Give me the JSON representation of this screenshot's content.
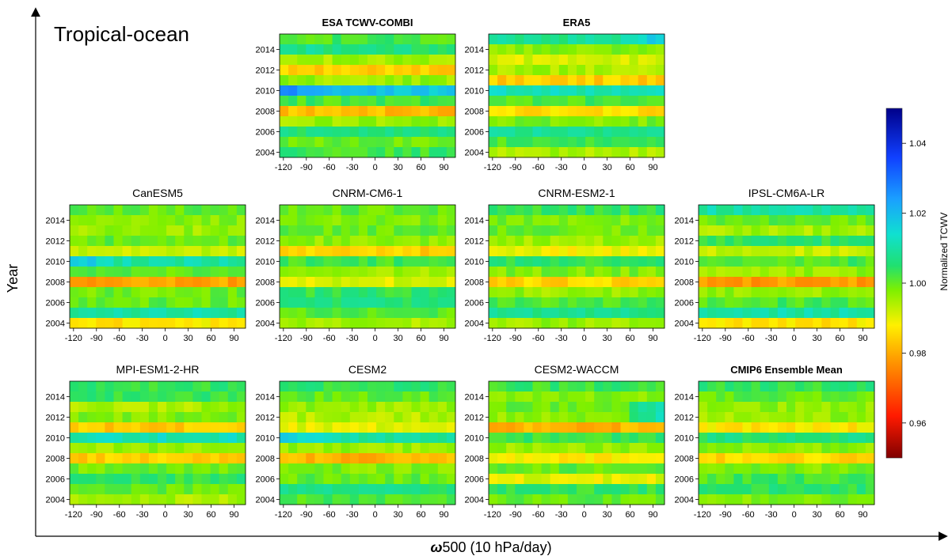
{
  "region_label": "Tropical-ocean",
  "y_axis_label": "Year",
  "x_axis_label": "500 (10 hPa/day)",
  "x_axis_symbol": "ω",
  "colorbar": {
    "label": "Normalized TCWV",
    "min": 0.95,
    "max": 1.05,
    "ticks": [
      "1.04",
      "1.02",
      "1.00",
      "0.98",
      "0.96"
    ]
  },
  "chart_data": [
    {
      "type": "heatmap",
      "title": "ESA TCWV-COMBI",
      "bold": true,
      "x_ticks": [
        "-120",
        "-90",
        "-60",
        "-30",
        "0",
        "30",
        "60",
        "90"
      ],
      "y_ticks": [
        "2014",
        "2012",
        "2010",
        "2008",
        "2006",
        "2004"
      ],
      "rows": [
        {
          "year": 2015,
          "base": 1.002,
          "hi_left": 0.0,
          "hi_right": 0.0
        },
        {
          "year": 2014,
          "base": 1.006,
          "note": "",
          "hi_left": 0.004,
          "hi_right": 0.0
        },
        {
          "year": 2013,
          "base": 0.995
        },
        {
          "year": 2012,
          "base": 0.984
        },
        {
          "year": 2011,
          "base": 0.996
        },
        {
          "year": 2010,
          "base": 1.018,
          "hi_left": 0.01
        },
        {
          "year": 2009,
          "base": 1.002
        },
        {
          "year": 2008,
          "base": 0.982
        },
        {
          "year": 2007,
          "base": 0.996
        },
        {
          "year": 2006,
          "base": 1.006
        },
        {
          "year": 2005,
          "base": 0.999
        },
        {
          "year": 2004,
          "base": 1.003
        }
      ]
    },
    {
      "type": "heatmap",
      "title": "ERA5",
      "bold": true,
      "x_ticks": [
        "-120",
        "-90",
        "-60",
        "-30",
        "0",
        "30",
        "60",
        "90"
      ],
      "y_ticks": [
        "2014",
        "2012",
        "2010",
        "2008",
        "2006",
        "2004"
      ],
      "rows": [
        {
          "year": 2015,
          "base": 1.008,
          "hi_right": 0.01
        },
        {
          "year": 2014,
          "base": 0.998
        },
        {
          "year": 2013,
          "base": 0.991
        },
        {
          "year": 2012,
          "base": 0.995
        },
        {
          "year": 2011,
          "base": 0.984
        },
        {
          "year": 2010,
          "base": 1.012
        },
        {
          "year": 2009,
          "base": 1.002
        },
        {
          "year": 2008,
          "base": 0.986
        },
        {
          "year": 2007,
          "base": 0.998
        },
        {
          "year": 2006,
          "base": 1.008
        },
        {
          "year": 2005,
          "base": 1.002
        },
        {
          "year": 2004,
          "base": 0.995
        }
      ]
    },
    {
      "type": "heatmap",
      "title": "CanESM5",
      "bold": false,
      "x_ticks": [
        "-120",
        "-90",
        "-60",
        "-30",
        "0",
        "30",
        "60",
        "90"
      ],
      "y_ticks": [
        "2014",
        "2012",
        "2010",
        "2008",
        "2006",
        "2004"
      ],
      "rows": [
        {
          "year": 2015,
          "base": 1.0
        },
        {
          "year": 2014,
          "base": 0.998
        },
        {
          "year": 2013,
          "base": 0.996
        },
        {
          "year": 2012,
          "base": 1.0
        },
        {
          "year": 2011,
          "base": 0.992
        },
        {
          "year": 2010,
          "base": 1.01,
          "hi_left": 0.01
        },
        {
          "year": 2009,
          "base": 1.0
        },
        {
          "year": 2008,
          "base": 0.979
        },
        {
          "year": 2007,
          "base": 0.999
        },
        {
          "year": 2006,
          "base": 1.0
        },
        {
          "year": 2005,
          "base": 1.01
        },
        {
          "year": 2004,
          "base": 0.987
        }
      ]
    },
    {
      "type": "heatmap",
      "title": "CNRM-CM6-1",
      "bold": false,
      "x_ticks": [
        "-120",
        "-90",
        "-60",
        "-30",
        "0",
        "30",
        "60",
        "90"
      ],
      "y_ticks": [
        "2014",
        "2012",
        "2010",
        "2008",
        "2006",
        "2004"
      ],
      "rows": [
        {
          "year": 2015,
          "base": 1.0
        },
        {
          "year": 2014,
          "base": 0.998
        },
        {
          "year": 2013,
          "base": 1.0
        },
        {
          "year": 2012,
          "base": 0.997
        },
        {
          "year": 2011,
          "base": 0.984
        },
        {
          "year": 2010,
          "base": 1.002
        },
        {
          "year": 2009,
          "base": 0.995
        },
        {
          "year": 2008,
          "base": 0.991
        },
        {
          "year": 2007,
          "base": 1.004
        },
        {
          "year": 2006,
          "base": 1.006
        },
        {
          "year": 2005,
          "base": 1.001
        },
        {
          "year": 2004,
          "base": 0.995
        }
      ]
    },
    {
      "type": "heatmap",
      "title": "CNRM-ESM2-1",
      "bold": false,
      "x_ticks": [
        "-120",
        "-90",
        "-60",
        "-30",
        "0",
        "30",
        "60",
        "90"
      ],
      "y_ticks": [
        "2014",
        "2012",
        "2010",
        "2008",
        "2006",
        "2004"
      ],
      "rows": [
        {
          "year": 2015,
          "base": 1.004
        },
        {
          "year": 2014,
          "base": 0.998
        },
        {
          "year": 2013,
          "base": 0.999
        },
        {
          "year": 2012,
          "base": 0.996
        },
        {
          "year": 2011,
          "base": 0.989
        },
        {
          "year": 2010,
          "base": 1.004
        },
        {
          "year": 2009,
          "base": 0.998
        },
        {
          "year": 2008,
          "base": 0.985
        },
        {
          "year": 2007,
          "base": 0.996
        },
        {
          "year": 2006,
          "base": 1.002
        },
        {
          "year": 2005,
          "base": 1.008
        },
        {
          "year": 2004,
          "base": 0.996
        }
      ]
    },
    {
      "type": "heatmap",
      "title": "IPSL-CM6A-LR",
      "bold": false,
      "x_ticks": [
        "-120",
        "-90",
        "-60",
        "-30",
        "0",
        "30",
        "60",
        "90"
      ],
      "y_ticks": [
        "2014",
        "2012",
        "2010",
        "2008",
        "2006",
        "2004"
      ],
      "rows": [
        {
          "year": 2015,
          "base": 1.01
        },
        {
          "year": 2014,
          "base": 1.0
        },
        {
          "year": 2013,
          "base": 0.995
        },
        {
          "year": 2012,
          "base": 1.004
        },
        {
          "year": 2011,
          "base": 0.992
        },
        {
          "year": 2010,
          "base": 1.002
        },
        {
          "year": 2009,
          "base": 0.996
        },
        {
          "year": 2008,
          "base": 0.978
        },
        {
          "year": 2007,
          "base": 0.996
        },
        {
          "year": 2006,
          "base": 1.002
        },
        {
          "year": 2005,
          "base": 1.01
        },
        {
          "year": 2004,
          "base": 0.987
        }
      ]
    },
    {
      "type": "heatmap",
      "title": "MPI-ESM1-2-HR",
      "bold": false,
      "x_ticks": [
        "-120",
        "-90",
        "-60",
        "-30",
        "0",
        "30",
        "60",
        "90"
      ],
      "y_ticks": [
        "2014",
        "2012",
        "2010",
        "2008",
        "2006",
        "2004"
      ],
      "rows": [
        {
          "year": 2015,
          "base": 1.004
        },
        {
          "year": 2014,
          "base": 1.003
        },
        {
          "year": 2013,
          "base": 0.995
        },
        {
          "year": 2012,
          "base": 0.998
        },
        {
          "year": 2011,
          "base": 0.984
        },
        {
          "year": 2010,
          "base": 1.012
        },
        {
          "year": 2009,
          "base": 0.996
        },
        {
          "year": 2008,
          "base": 0.984
        },
        {
          "year": 2007,
          "base": 0.999
        },
        {
          "year": 2006,
          "base": 1.004
        },
        {
          "year": 2005,
          "base": 1.0
        },
        {
          "year": 2004,
          "base": 0.995
        }
      ]
    },
    {
      "type": "heatmap",
      "title": "CESM2",
      "bold": false,
      "x_ticks": [
        "-120",
        "-90",
        "-60",
        "-30",
        "0",
        "30",
        "60",
        "90"
      ],
      "y_ticks": [
        "2014",
        "2012",
        "2010",
        "2008",
        "2006",
        "2004"
      ],
      "rows": [
        {
          "year": 2015,
          "base": 1.004
        },
        {
          "year": 2014,
          "base": 1.0
        },
        {
          "year": 2013,
          "base": 0.996
        },
        {
          "year": 2012,
          "base": 0.994
        },
        {
          "year": 2011,
          "base": 0.99
        },
        {
          "year": 2010,
          "base": 1.01,
          "hi_left": 0.01
        },
        {
          "year": 2009,
          "base": 0.996
        },
        {
          "year": 2008,
          "base": 0.981
        },
        {
          "year": 2007,
          "base": 0.998
        },
        {
          "year": 2006,
          "base": 1.0
        },
        {
          "year": 2005,
          "base": 1.006
        },
        {
          "year": 2004,
          "base": 1.002
        }
      ]
    },
    {
      "type": "heatmap",
      "title": "CESM2-WACCM",
      "bold": false,
      "x_ticks": [
        "-120",
        "-90",
        "-60",
        "-30",
        "0",
        "30",
        "60",
        "90"
      ],
      "y_ticks": [
        "2014",
        "2012",
        "2010",
        "2008",
        "2006",
        "2004"
      ],
      "rows": [
        {
          "year": 2015,
          "base": 1.003
        },
        {
          "year": 2014,
          "base": 0.998
        },
        {
          "year": 2013,
          "base": 1.0,
          "hi_right": 0.012
        },
        {
          "year": 2012,
          "base": 0.997,
          "hi_right": 0.016
        },
        {
          "year": 2011,
          "base": 0.981
        },
        {
          "year": 2010,
          "base": 1.003
        },
        {
          "year": 2009,
          "base": 0.996
        },
        {
          "year": 2008,
          "base": 0.988
        },
        {
          "year": 2007,
          "base": 1.0
        },
        {
          "year": 2006,
          "base": 0.99
        },
        {
          "year": 2005,
          "base": 1.004
        },
        {
          "year": 2004,
          "base": 1.0
        }
      ]
    },
    {
      "type": "heatmap",
      "title": "CMIP6 Ensemble Mean",
      "bold": true,
      "x_ticks": [
        "-120",
        "-90",
        "-60",
        "-30",
        "0",
        "30",
        "60",
        "90"
      ],
      "y_ticks": [
        "2014",
        "2012",
        "2010",
        "2008",
        "2006",
        "2004"
      ],
      "rows": [
        {
          "year": 2015,
          "base": 1.004
        },
        {
          "year": 2014,
          "base": 1.0
        },
        {
          "year": 2013,
          "base": 0.997
        },
        {
          "year": 2012,
          "base": 0.996
        },
        {
          "year": 2011,
          "base": 0.987
        },
        {
          "year": 2010,
          "base": 1.006
        },
        {
          "year": 2009,
          "base": 0.997
        },
        {
          "year": 2008,
          "base": 0.985
        },
        {
          "year": 2007,
          "base": 0.998
        },
        {
          "year": 2006,
          "base": 1.002
        },
        {
          "year": 2005,
          "base": 1.004
        },
        {
          "year": 2004,
          "base": 0.998
        }
      ]
    }
  ]
}
